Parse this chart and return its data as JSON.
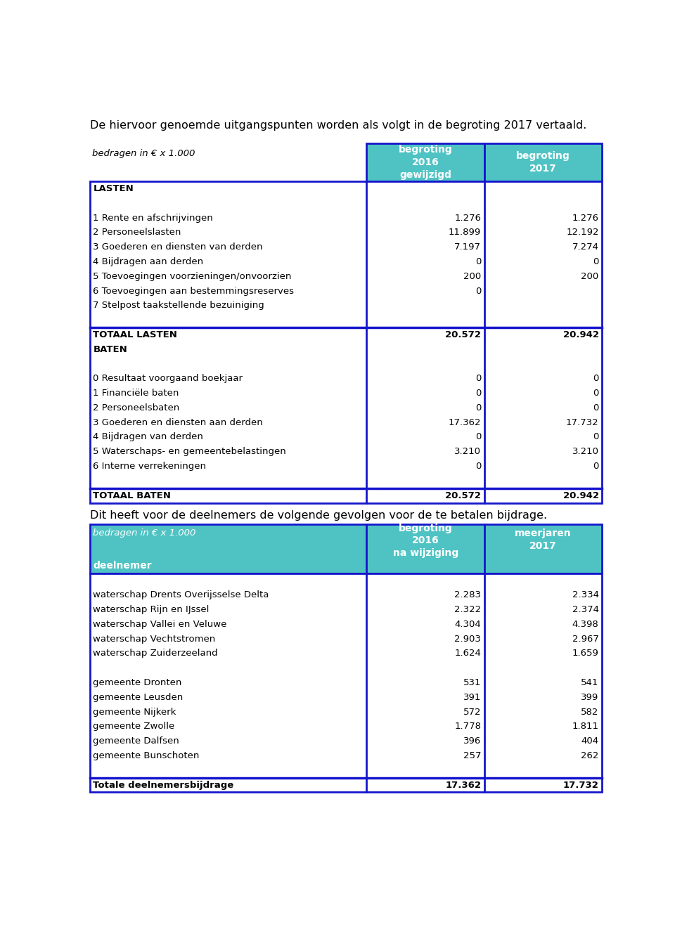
{
  "title_text": "De hiervoor genoemde uitgangspunten worden als volgt in de begroting 2017 vertaald.",
  "subtitle2": "Dit heeft voor de deelnemers de volgende gevolgen voor de te betalen bijdrage.",
  "header_bg": "#4FC3C3",
  "header_text_color": "#FFFFFF",
  "border_color": "#1515CC",
  "body_bg": "#FFFFFF",
  "text_color": "#000000",
  "table1_header_label": "bedragen in € x 1.000",
  "table1_col1": "begroting\n2016\ngewijzigd",
  "table1_col2": "begroting\n2017",
  "table1_rows": [
    [
      "LASTEN",
      "",
      "",
      "bold",
      false
    ],
    [
      "",
      "",
      "",
      "normal",
      false
    ],
    [
      "1 Rente en afschrijvingen",
      "1.276",
      "1.276",
      "normal",
      false
    ],
    [
      "2 Personeelslasten",
      "11.899",
      "12.192",
      "normal",
      false
    ],
    [
      "3 Goederen en diensten van derden",
      "7.197",
      "7.274",
      "normal",
      false
    ],
    [
      "4 Bijdragen aan derden",
      "0",
      "0",
      "normal",
      false
    ],
    [
      "5 Toevoegingen voorzieningen/onvoorzien",
      "200",
      "200",
      "normal",
      false
    ],
    [
      "6 Toevoegingen aan bestemmingsreserves",
      "0",
      "",
      "normal",
      false
    ],
    [
      "7 Stelpost taakstellende bezuiniging",
      "",
      "",
      "normal",
      false
    ],
    [
      "",
      "",
      "",
      "normal",
      false
    ],
    [
      "TOTAAL LASTEN",
      "20.572",
      "20.942",
      "bold",
      true
    ],
    [
      "BATEN",
      "",
      "",
      "bold",
      false
    ],
    [
      "",
      "",
      "",
      "normal",
      false
    ],
    [
      "0 Resultaat voorgaand boekjaar",
      "0",
      "0",
      "normal",
      false
    ],
    [
      "1 Financiële baten",
      "0",
      "0",
      "normal",
      false
    ],
    [
      "2 Personeelsbaten",
      "0",
      "0",
      "normal",
      false
    ],
    [
      "3 Goederen en diensten aan derden",
      "17.362",
      "17.732",
      "normal",
      false
    ],
    [
      "4 Bijdragen van derden",
      "0",
      "0",
      "normal",
      false
    ],
    [
      "5 Waterschaps- en gemeentebelastingen",
      "3.210",
      "3.210",
      "normal",
      false
    ],
    [
      "6 Interne verrekeningen",
      "0",
      "0",
      "normal",
      false
    ],
    [
      "",
      "",
      "",
      "normal",
      false
    ],
    [
      "TOTAAL BATEN",
      "20.572",
      "20.942",
      "bold",
      true
    ]
  ],
  "table2_header_label": "bedragen in € x 1.000",
  "table2_col1": "begroting\n2016\nna wijziging",
  "table2_col2": "meerjaren\n2017",
  "table2_sub_label": "deelnemer",
  "table2_rows": [
    [
      "",
      "",
      "",
      "normal",
      false
    ],
    [
      "waterschap Drents Overijsselse Delta",
      "2.283",
      "2.334",
      "normal",
      false
    ],
    [
      "waterschap Rijn en IJssel",
      "2.322",
      "2.374",
      "normal",
      false
    ],
    [
      "waterschap Vallei en Veluwe",
      "4.304",
      "4.398",
      "normal",
      false
    ],
    [
      "waterschap Vechtstromen",
      "2.903",
      "2.967",
      "normal",
      false
    ],
    [
      "waterschap Zuiderzeeland",
      "1.624",
      "1.659",
      "normal",
      false
    ],
    [
      "",
      "",
      "",
      "normal",
      false
    ],
    [
      "gemeente Dronten",
      "531",
      "541",
      "normal",
      false
    ],
    [
      "gemeente Leusden",
      "391",
      "399",
      "normal",
      false
    ],
    [
      "gemeente Nijkerk",
      "572",
      "582",
      "normal",
      false
    ],
    [
      "gemeente Zwolle",
      "1.778",
      "1.811",
      "normal",
      false
    ],
    [
      "gemeente Dalfsen",
      "396",
      "404",
      "normal",
      false
    ],
    [
      "gemeente Bunschoten",
      "257",
      "262",
      "normal",
      false
    ],
    [
      "",
      "",
      "",
      "normal",
      false
    ],
    [
      "Totale deelnemersbijdrage",
      "17.362",
      "17.732",
      "bold",
      true
    ]
  ]
}
